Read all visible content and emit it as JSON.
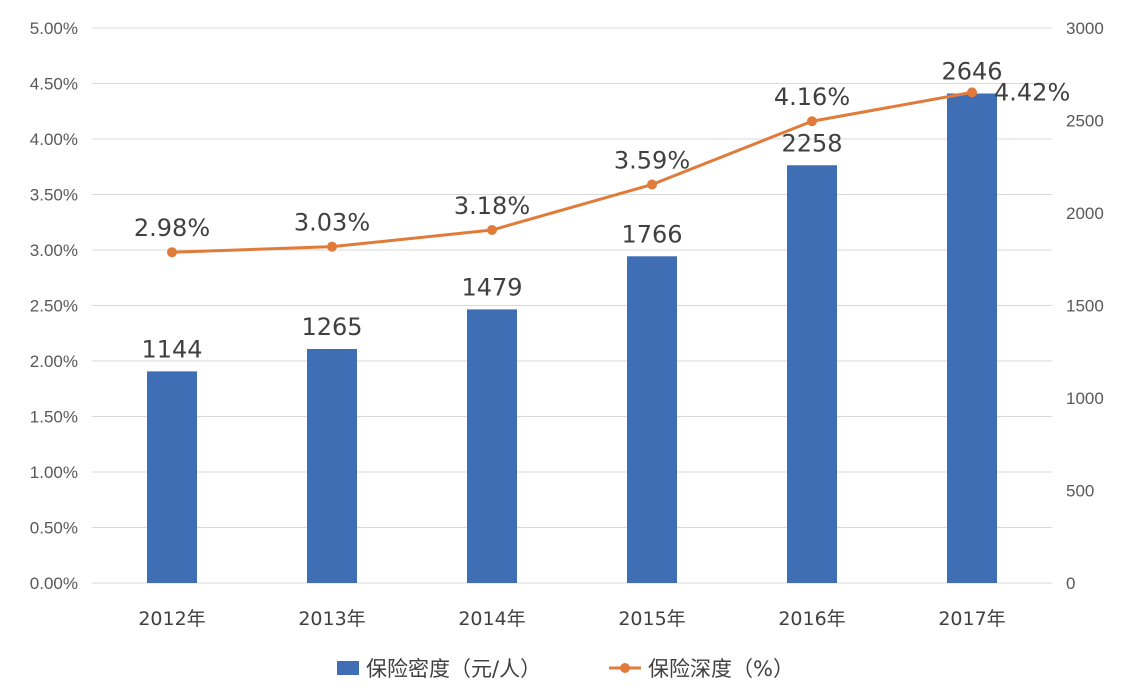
{
  "chart_data": {
    "type": "bar",
    "categories": [
      "2012年",
      "2013年",
      "2014年",
      "2015年",
      "2016年",
      "2017年"
    ],
    "series": [
      {
        "name": "保险密度（元/人）",
        "type": "bar",
        "axis": "right",
        "values": [
          1144,
          1265,
          1479,
          1766,
          2258,
          2646
        ],
        "labels": [
          "1144",
          "1265",
          "1479",
          "1766",
          "2258",
          "2646"
        ],
        "color": "#3f6eb5"
      },
      {
        "name": "保险深度（%）",
        "type": "line",
        "axis": "left",
        "values": [
          2.98,
          3.03,
          3.18,
          3.59,
          4.16,
          4.42
        ],
        "labels": [
          "2.98%",
          "3.03%",
          "3.18%",
          "3.59%",
          "4.16%",
          "4.42%"
        ],
        "color": "#e07b39"
      }
    ],
    "y_left": {
      "ylim": [
        0,
        5
      ],
      "ticks": [
        "0.00%",
        "0.50%",
        "1.00%",
        "1.50%",
        "2.00%",
        "2.50%",
        "3.00%",
        "3.50%",
        "4.00%",
        "4.50%",
        "5.00%"
      ]
    },
    "y_right": {
      "ylim": [
        0,
        3000
      ],
      "ticks": [
        "0",
        "500",
        "1000",
        "1500",
        "2000",
        "2500",
        "3000"
      ]
    },
    "grid": true,
    "legend": "bottom"
  }
}
